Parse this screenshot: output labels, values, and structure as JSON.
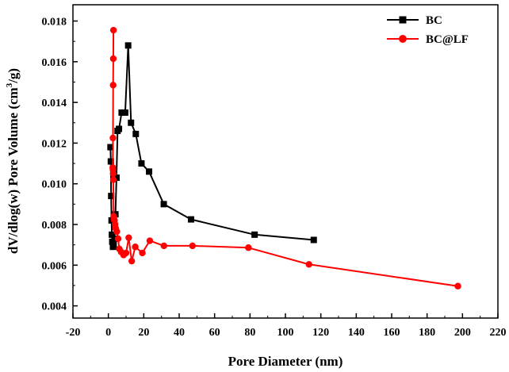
{
  "chart_data": {
    "type": "line",
    "title": "",
    "xlabel": "Pore Diameter (nm)",
    "ylabel_main": "dV/dlog(w) Pore Volume (cm",
    "ylabel_sup": "3",
    "ylabel_tail": "/g)",
    "xlim": [
      -20,
      220
    ],
    "ylim": [
      0.0034,
      0.0188
    ],
    "x_ticks": [
      -20,
      0,
      20,
      40,
      60,
      80,
      100,
      120,
      140,
      160,
      180,
      200,
      220
    ],
    "x_tick_labels": [
      "-20",
      "0",
      "20",
      "40",
      "60",
      "80",
      "100",
      "120",
      "140",
      "160",
      "180",
      "200",
      "220"
    ],
    "y_ticks": [
      0.004,
      0.006,
      0.008,
      0.01,
      0.012,
      0.014,
      0.016,
      0.018
    ],
    "y_tick_labels": [
      "0.004",
      "0.006",
      "0.008",
      "0.010",
      "0.012",
      "0.014",
      "0.016",
      "0.018"
    ],
    "legend_position": "top-right",
    "series": [
      {
        "name": "BC",
        "color": "#000000",
        "marker": "square",
        "x": [
          1.2,
          1.4,
          1.6,
          1.8,
          2.0,
          2.2,
          2.6,
          3.0,
          3.5,
          4.0,
          4.6,
          5.2,
          6.0,
          7.5,
          9.5,
          11.2,
          12.8,
          15.5,
          18.7,
          23.0,
          31.3,
          46.7,
          82.6,
          116.0
        ],
        "y": [
          0.0118,
          0.0111,
          0.0094,
          0.0082,
          0.0075,
          0.00715,
          0.0069,
          0.007,
          0.0073,
          0.0085,
          0.0103,
          0.0126,
          0.0127,
          0.0135,
          0.0135,
          0.0168,
          0.013,
          0.01245,
          0.011,
          0.0106,
          0.009,
          0.00825,
          0.0075,
          0.00724
        ]
      },
      {
        "name": "BC@LF",
        "color": "#ff0000",
        "marker": "circle",
        "x": [
          2.9,
          2.8,
          2.7,
          2.6,
          2.5,
          2.6,
          2.7,
          2.8,
          3.0,
          3.2,
          3.5,
          3.8,
          4.2,
          4.8,
          5.5,
          6.2,
          7.2,
          8.6,
          10.0,
          11.5,
          13.2,
          15.2,
          19.2,
          23.4,
          31.4,
          47.5,
          79.1,
          113.3,
          197.4
        ],
        "y": [
          0.01755,
          0.01615,
          0.01485,
          0.01225,
          0.0108,
          0.0107,
          0.0105,
          0.0102,
          0.0084,
          0.00825,
          0.0082,
          0.008,
          0.0078,
          0.00765,
          0.0073,
          0.0068,
          0.00665,
          0.0065,
          0.0066,
          0.00735,
          0.0062,
          0.0069,
          0.0066,
          0.0072,
          0.00695,
          0.00695,
          0.00686,
          0.00604,
          0.00497
        ]
      }
    ]
  }
}
